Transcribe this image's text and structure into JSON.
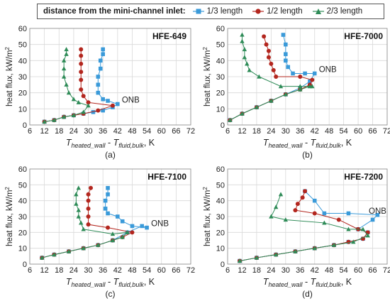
{
  "legend": {
    "title": "distance from the mini-channel inlet:",
    "entries": [
      {
        "label": "1/3 length",
        "color": "#3a9ad9",
        "marker": "square"
      },
      {
        "label": "1/2 length",
        "color": "#b3261e",
        "marker": "circle"
      },
      {
        "label": "2/3 length",
        "color": "#2e8b57",
        "marker": "triangle"
      }
    ]
  },
  "chart_data": [
    {
      "type": "scatter",
      "panel_label": "(a)",
      "title": "HFE-649",
      "annotation": "ONB",
      "ylabel": "heat flux, kW/m²",
      "xlabel": "T_heated_wall - T_fluid,bulk, K",
      "xlim": [
        6,
        72
      ],
      "ylim": [
        0,
        60
      ],
      "xticks": [
        "6",
        "12",
        "18",
        "24",
        "30",
        "36",
        "42",
        "48",
        "54",
        "60",
        "66",
        "72"
      ],
      "yticks": [
        "0",
        "10",
        "20",
        "30",
        "40",
        "50",
        "60"
      ],
      "grid": true,
      "series": [
        {
          "name": "1/3 length",
          "x": [
            12,
            16,
            20,
            24,
            28,
            32,
            36,
            40,
            42,
            38,
            36,
            34,
            34,
            34,
            35,
            35,
            36,
            36
          ],
          "y": [
            2,
            3,
            5,
            6,
            7,
            8,
            9,
            11,
            13,
            15,
            16,
            20,
            25,
            30,
            35,
            40,
            44,
            47
          ]
        },
        {
          "name": "1/2 length",
          "x": [
            12,
            16,
            20,
            24,
            28,
            34,
            40,
            30,
            28,
            27,
            27,
            27,
            27,
            27,
            27
          ],
          "y": [
            2,
            3,
            5,
            6,
            7,
            9,
            12,
            14,
            18,
            22,
            28,
            33,
            38,
            43,
            47
          ]
        },
        {
          "name": "2/3 length",
          "x": [
            12,
            16,
            20,
            24,
            28,
            30,
            26,
            24,
            22,
            21,
            20,
            20,
            20,
            21,
            21
          ],
          "y": [
            2,
            3,
            5,
            6,
            8,
            12,
            14,
            16,
            20,
            25,
            30,
            35,
            40,
            44,
            47
          ]
        }
      ]
    },
    {
      "type": "scatter",
      "panel_label": "(b)",
      "title": "HFE-7000",
      "annotation": "ONB",
      "ylabel": "heat flux, kW/m²",
      "xlabel": "T_heated_wall - T_fluid,bulk, K",
      "xlim": [
        6,
        72
      ],
      "ylim": [
        0,
        60
      ],
      "xticks": [
        "6",
        "12",
        "18",
        "24",
        "30",
        "36",
        "42",
        "48",
        "54",
        "60",
        "66",
        "72"
      ],
      "yticks": [
        "0",
        "10",
        "20",
        "30",
        "40",
        "50",
        "60"
      ],
      "grid": true,
      "series": [
        {
          "name": "1/3 length",
          "x": [
            7,
            12,
            18,
            24,
            30,
            36,
            40,
            42,
            38,
            33,
            31,
            30,
            30,
            30,
            29
          ],
          "y": [
            3,
            7,
            11,
            15,
            19,
            23,
            27,
            32,
            32,
            32,
            36,
            40,
            44,
            50,
            56
          ]
        },
        {
          "name": "1/2 length",
          "x": [
            7,
            12,
            18,
            24,
            30,
            36,
            40,
            41,
            36,
            26,
            25,
            24,
            23,
            23,
            22,
            21
          ],
          "y": [
            3,
            7,
            11,
            15,
            19,
            22,
            25,
            28,
            30,
            30,
            34,
            38,
            42,
            46,
            50,
            55
          ]
        },
        {
          "name": "2/3 length",
          "x": [
            7,
            12,
            18,
            24,
            30,
            36,
            40,
            41,
            36,
            28,
            19,
            15,
            14,
            13,
            13,
            12,
            12
          ],
          "y": [
            3,
            7,
            11,
            15,
            19,
            22,
            24,
            24,
            24,
            24,
            30,
            34,
            38,
            42,
            47,
            52,
            56
          ]
        }
      ]
    },
    {
      "type": "scatter",
      "panel_label": "(c)",
      "title": "HFE-7100",
      "annotation": "ONB",
      "ylabel": "heat flux, kW/m²",
      "xlabel": "T_heated_wall - T_fluid,bulk, K",
      "xlim": [
        6,
        72
      ],
      "ylim": [
        0,
        60
      ],
      "xticks": [
        "6",
        "12",
        "18",
        "24",
        "30",
        "36",
        "42",
        "48",
        "54",
        "60",
        "66",
        "72"
      ],
      "yticks": [
        "0",
        "10",
        "20",
        "30",
        "40",
        "50",
        "60"
      ],
      "grid": true,
      "series": [
        {
          "name": "1/3 length",
          "x": [
            11,
            16,
            22,
            28,
            34,
            40,
            46,
            52,
            54,
            48,
            44,
            42,
            38,
            37,
            37,
            38,
            38
          ],
          "y": [
            4,
            6,
            8,
            10,
            12,
            15,
            20,
            24,
            23,
            24,
            27,
            30,
            32,
            35,
            40,
            44,
            48
          ]
        },
        {
          "name": "1/2 length",
          "x": [
            11,
            16,
            22,
            28,
            34,
            40,
            44,
            48,
            38,
            30,
            30,
            30,
            30,
            30,
            31
          ],
          "y": [
            4,
            6,
            8,
            10,
            12,
            15,
            17,
            20,
            23,
            25,
            30,
            35,
            40,
            44,
            48
          ]
        },
        {
          "name": "2/3 length",
          "x": [
            11,
            16,
            22,
            28,
            34,
            40,
            44,
            46,
            40,
            28,
            27,
            26,
            26,
            25,
            25,
            26
          ],
          "y": [
            4,
            6,
            8,
            10,
            12,
            15,
            17,
            20,
            19,
            22,
            26,
            30,
            34,
            38,
            44,
            48
          ]
        }
      ]
    },
    {
      "type": "scatter",
      "panel_label": "(d)",
      "title": "HFE-7200",
      "annotation": "ONB",
      "ylabel": "heat flux, kW/m²",
      "xlabel": "T_heated_wall - T_fluid,bulk, K",
      "xlim": [
        6,
        72
      ],
      "ylim": [
        0,
        60
      ],
      "xticks": [
        "6",
        "12",
        "18",
        "24",
        "30",
        "36",
        "42",
        "48",
        "54",
        "60",
        "66",
        "72"
      ],
      "yticks": [
        "0",
        "10",
        "20",
        "30",
        "40",
        "50",
        "60"
      ],
      "grid": true,
      "series": [
        {
          "name": "1/3 length",
          "x": [
            11,
            18,
            26,
            34,
            42,
            50,
            56,
            62,
            64,
            60,
            66,
            68,
            56,
            46,
            42,
            38
          ],
          "y": [
            2,
            4,
            6,
            8,
            10,
            12,
            14,
            16,
            20,
            22,
            28,
            31,
            32,
            32,
            40,
            46
          ]
        },
        {
          "name": "1/2 length",
          "x": [
            11,
            18,
            26,
            34,
            42,
            50,
            56,
            62,
            64,
            60,
            52,
            42,
            34,
            35,
            37,
            38
          ],
          "y": [
            2,
            4,
            6,
            8,
            10,
            12,
            14,
            16,
            20,
            22,
            28,
            32,
            34,
            38,
            42,
            46
          ]
        },
        {
          "name": "2/3 length",
          "x": [
            11,
            18,
            26,
            34,
            42,
            50,
            58,
            64,
            62,
            56,
            46,
            30,
            24,
            26,
            28
          ],
          "y": [
            2,
            4,
            6,
            8,
            10,
            12,
            14,
            18,
            22,
            22,
            26,
            28,
            30,
            36,
            44
          ]
        }
      ]
    }
  ]
}
